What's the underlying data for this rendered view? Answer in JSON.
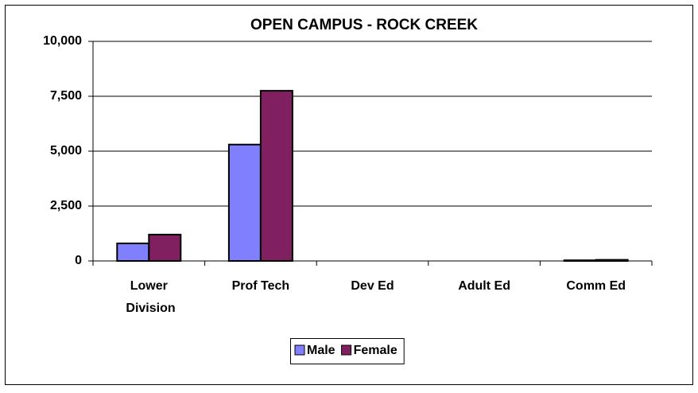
{
  "chart_data": {
    "type": "bar",
    "title": "OPEN CAMPUS - ROCK CREEK",
    "categories": [
      "Lower Division",
      "Prof Tech",
      "Dev Ed",
      "Adult Ed",
      "Comm Ed"
    ],
    "series": [
      {
        "name": "Male",
        "color": "#8080ff",
        "values": [
          800,
          5300,
          0,
          0,
          30
        ]
      },
      {
        "name": "Female",
        "color": "#802060",
        "values": [
          1200,
          7750,
          0,
          0,
          50
        ]
      }
    ],
    "ylim": [
      0,
      10000
    ],
    "yticks": [
      0,
      {
        "value": 2500,
        "label": "2,500"
      },
      {
        "value": 5000,
        "label": "5,000"
      },
      {
        "value": 7500,
        "label": "7,500"
      },
      {
        "value": 10000,
        "label": "10,000"
      }
    ],
    "grid": true,
    "legend": "bottom"
  }
}
